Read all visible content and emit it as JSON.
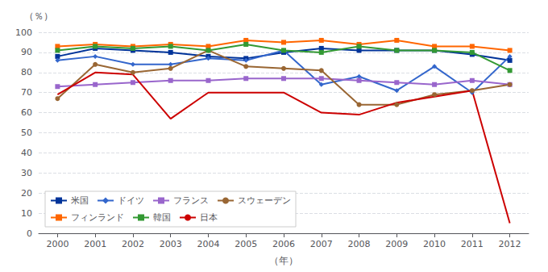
{
  "chart_data": {
    "type": "line",
    "x": [
      2000,
      2001,
      2002,
      2003,
      2004,
      2005,
      2006,
      2007,
      2008,
      2009,
      2010,
      2011,
      2012
    ],
    "series": [
      {
        "name": "米国",
        "color": "#003399",
        "marker": "square",
        "line_style": "solid",
        "values": [
          88,
          92,
          91,
          90,
          88,
          87,
          90,
          92,
          91,
          91,
          91,
          89,
          86
        ]
      },
      {
        "name": "ドイツ",
        "color": "#3366cc",
        "marker": "diamond",
        "line_style": "solid",
        "values": [
          86,
          88,
          84,
          84,
          87,
          86,
          91,
          74,
          78,
          71,
          83,
          70,
          88
        ]
      },
      {
        "name": "フランス",
        "color": "#9966cc",
        "marker": "square",
        "line_style": "solid",
        "values": [
          73,
          74,
          75,
          76,
          76,
          77,
          77,
          77,
          76,
          75,
          74,
          76,
          74
        ]
      },
      {
        "name": "スウェーデン",
        "color": "#996633",
        "marker": "circle",
        "line_style": "solid",
        "values": [
          67,
          84,
          80,
          82,
          91,
          83,
          82,
          81,
          64,
          64,
          69,
          71,
          74
        ]
      },
      {
        "name": "フィンランド",
        "color": "#ff6600",
        "marker": "square",
        "line_style": "solid",
        "values": [
          93,
          94,
          93,
          94,
          93,
          96,
          95,
          96,
          94,
          96,
          93,
          93,
          91
        ]
      },
      {
        "name": "韓国",
        "color": "#339933",
        "marker": "square",
        "line_style": "solid",
        "values": [
          91,
          93,
          92,
          93,
          91,
          94,
          91,
          90,
          93,
          91,
          91,
          90,
          81
        ]
      },
      {
        "name": "日本",
        "color": "#cc0000",
        "marker": "none",
        "line_style": "solid",
        "values": [
          69,
          80,
          79,
          57,
          70,
          70,
          70,
          60,
          59,
          65,
          68,
          71,
          5
        ]
      }
    ],
    "xlabel": "（年）",
    "ylabel": "（％）",
    "xlim": [
      1999.5,
      2012.5
    ],
    "xticks": [
      2000,
      2001,
      2002,
      2003,
      2004,
      2005,
      2006,
      2007,
      2008,
      2009,
      2010,
      2011,
      2012
    ],
    "ylim": [
      0,
      100
    ],
    "yticks": [
      0,
      10,
      20,
      30,
      40,
      50,
      60,
      70,
      80,
      90,
      100
    ],
    "grid": true,
    "legend": "lower left"
  }
}
